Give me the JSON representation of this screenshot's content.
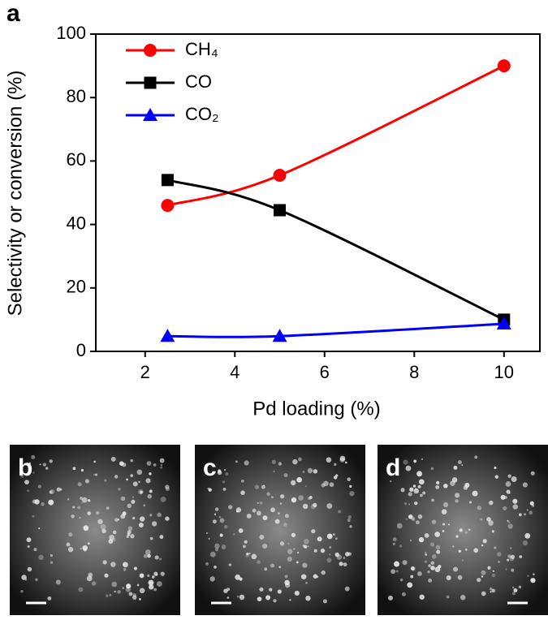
{
  "chart_data": {
    "type": "line",
    "panel_label": "a",
    "xlabel": "Pd loading (%)",
    "ylabel": "Selectivity or conversion (%)",
    "x": [
      2.5,
      5,
      10
    ],
    "series": [
      {
        "name": "CH₄",
        "color": "#ff0000",
        "marker": "circle",
        "values": [
          46,
          55.5,
          90
        ]
      },
      {
        "name": "CO",
        "color": "#000000",
        "marker": "square",
        "values": [
          54,
          44.5,
          10
        ]
      },
      {
        "name": "CO₂",
        "color": "#0000ff",
        "marker": "triangle",
        "values": [
          4.8,
          4.8,
          8.7
        ]
      }
    ],
    "xlim": [
      0.9,
      10.8
    ],
    "xticks": [
      2,
      4,
      6,
      8,
      10
    ],
    "ylim": [
      0,
      100
    ],
    "yticks": [
      0,
      20,
      40,
      60,
      80,
      100
    ],
    "legend": "upper left"
  },
  "images": [
    {
      "label": "b"
    },
    {
      "label": "c"
    },
    {
      "label": "d"
    }
  ]
}
